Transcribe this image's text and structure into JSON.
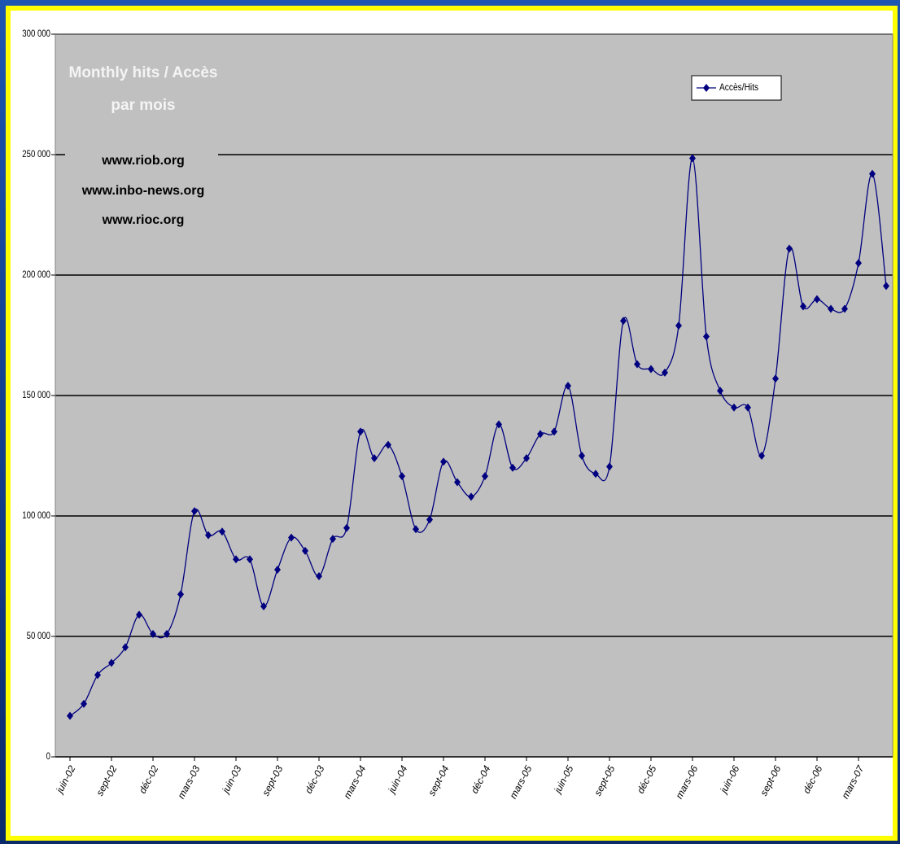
{
  "chart_data": {
    "type": "line",
    "title": [
      "Monthly hits / Accès",
      "par mois"
    ],
    "annotations": [
      "www.riob.org",
      "www.inbo-news.org",
      "www.rioc.org"
    ],
    "categories": [
      "juin-02",
      null,
      null,
      "sept-02",
      null,
      null,
      "déc-02",
      null,
      null,
      "mars-03",
      null,
      null,
      "juin-03",
      null,
      null,
      "sept-03",
      null,
      null,
      "déc-03",
      null,
      null,
      "mars-04",
      null,
      null,
      "juin-04",
      null,
      null,
      "sept-04",
      null,
      null,
      "déc-04",
      null,
      null,
      "mars-05",
      null,
      null,
      "juin-05",
      null,
      null,
      "sept-05",
      null,
      null,
      "déc-05",
      null,
      null,
      "mars-06",
      null,
      null,
      "juin-06",
      null,
      null,
      "sept-06",
      null,
      null,
      "déc-06",
      null,
      null,
      "mars-07",
      null,
      null
    ],
    "series": [
      {
        "name": "Accès/Hits",
        "color": "#000080",
        "values": [
          17000,
          22000,
          34000,
          39000,
          45500,
          59000,
          51000,
          51000,
          67500,
          102000,
          92000,
          93500,
          82000,
          82000,
          62500,
          77700,
          91000,
          85500,
          75000,
          90500,
          95000,
          135000,
          124000,
          129500,
          116500,
          94500,
          98500,
          122500,
          114000,
          108000,
          116500,
          138000,
          120000,
          124000,
          134000,
          135000,
          154000,
          125000,
          117500,
          120500,
          181000,
          163000,
          161000,
          159500,
          179000,
          248500,
          174500,
          152000,
          145000,
          145000,
          125000,
          157000,
          211000,
          187000,
          190000,
          186000,
          186000,
          205000,
          242000,
          195500
        ]
      }
    ],
    "ylim": [
      0,
      300000
    ],
    "yticks": [
      0,
      {
        "value": 50000,
        "label": "50 000"
      },
      {
        "value": 100000,
        "label": "100 000"
      },
      {
        "value": 150000,
        "label": "150 000"
      },
      {
        "value": 200000,
        "label": "200 000"
      },
      {
        "value": 250000,
        "label": "250 000"
      },
      {
        "value": 300000,
        "label": "300 000"
      }
    ],
    "grid": true,
    "legend": "upper right"
  }
}
